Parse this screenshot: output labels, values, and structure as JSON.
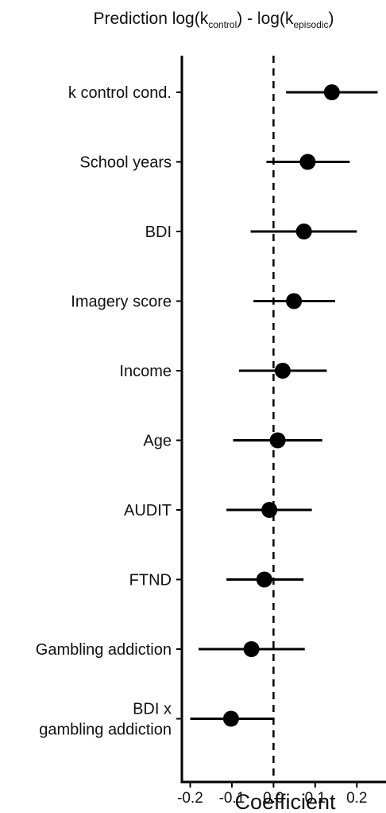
{
  "chart_data": {
    "type": "forest",
    "title": {
      "prefix": "Prediction log(k",
      "sub1": "control",
      "middle": ") - log(k",
      "sub2": "episodic",
      "suffix": ")"
    },
    "xlabel": "Coefficient",
    "xlim": [
      -0.22,
      0.27
    ],
    "xticks": [
      "-0.2",
      "-0.1",
      "0.0",
      "0.1",
      "0.2"
    ],
    "reference_line": 0.0,
    "categories": [
      {
        "label": [
          "k control cond."
        ],
        "estimate": 0.14,
        "lower": 0.03,
        "upper": 0.25
      },
      {
        "label": [
          "School years"
        ],
        "estimate": 0.082,
        "lower": -0.017,
        "upper": 0.183
      },
      {
        "label": [
          "BDI"
        ],
        "estimate": 0.073,
        "lower": -0.055,
        "upper": 0.2
      },
      {
        "label": [
          "Imagery score"
        ],
        "estimate": 0.049,
        "lower": -0.048,
        "upper": 0.148
      },
      {
        "label": [
          "Income"
        ],
        "estimate": 0.022,
        "lower": -0.083,
        "upper": 0.128
      },
      {
        "label": [
          "Age"
        ],
        "estimate": 0.01,
        "lower": -0.097,
        "upper": 0.117
      },
      {
        "label": [
          "AUDIT"
        ],
        "estimate": -0.01,
        "lower": -0.113,
        "upper": 0.092
      },
      {
        "label": [
          "FTND"
        ],
        "estimate": -0.022,
        "lower": -0.113,
        "upper": 0.072
      },
      {
        "label": [
          "Gambling addiction"
        ],
        "estimate": -0.053,
        "lower": -0.18,
        "upper": 0.075
      },
      {
        "label": [
          "BDI x",
          "gambling addiction"
        ],
        "estimate": -0.102,
        "lower": -0.2,
        "upper": 0.0
      }
    ],
    "grid": false,
    "legend": "none"
  }
}
